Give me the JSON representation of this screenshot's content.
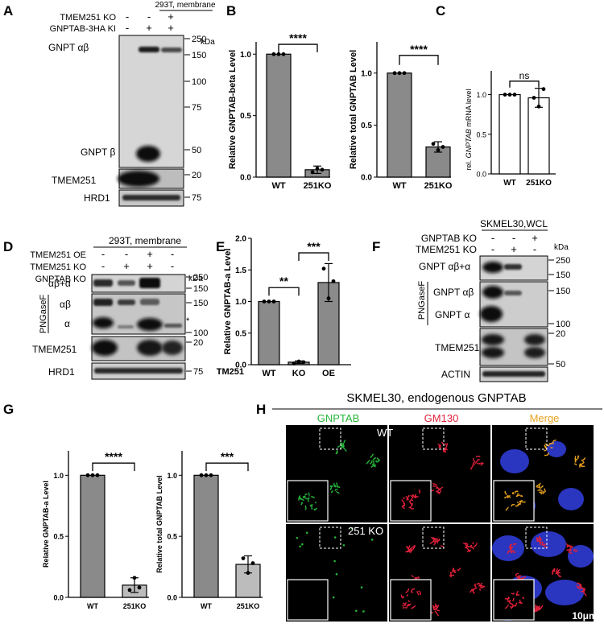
{
  "panels": {
    "A": "A",
    "B": "B",
    "C": "C",
    "D": "D",
    "E": "E",
    "F": "F",
    "G": "G",
    "H": "H"
  },
  "A": {
    "header": "293T, membrane",
    "rows": [
      {
        "label": "TMEM251 KO",
        "marks": [
          "-",
          "-",
          "+"
        ]
      },
      {
        "label": "GNPTAB-3HA KI",
        "marks": [
          "-",
          "+",
          "+"
        ]
      }
    ],
    "kda": "kDa",
    "mw": [
      "250",
      "150",
      "100",
      "75",
      "50",
      "20",
      "75"
    ],
    "band_labels": [
      "GNPT αβ",
      "GNPT β",
      "TMEM251",
      "HRD1"
    ]
  },
  "B": {
    "ylabel1": "Relative GNPTAB-beta Level",
    "ylabel2": "Relative total GNPTAB Level",
    "sig": "****",
    "xticks": [
      "WT",
      "251KO"
    ],
    "yticks": [
      "0.0",
      "0.5",
      "1.0"
    ]
  },
  "C": {
    "ylabel": "rel. GNPTAB mRNA level",
    "ylabel_pre": "rel. ",
    "ylabel_ital": "GNPTAB",
    "ylabel_post": " mRNA level",
    "sig": "ns",
    "xticks": [
      "WT",
      "251KO"
    ],
    "yticks": [
      "0.0",
      "0.5",
      "1.0"
    ]
  },
  "D": {
    "header": "293T, membrane",
    "rows": [
      {
        "label": "TMEM251 OE",
        "marks": [
          "-",
          "-",
          "+",
          "-"
        ]
      },
      {
        "label": "TMEM251 KO",
        "marks": [
          "-",
          "+",
          "+",
          "-"
        ]
      },
      {
        "label": "GNPTAB KO",
        "marks": [
          "-",
          "-",
          "-",
          "+"
        ]
      }
    ],
    "kda": "kDa",
    "png": "PNGaseF",
    "star": "*",
    "mw": [
      "250",
      "150",
      "150",
      "100",
      "20",
      "75"
    ],
    "band_labels": [
      "αβ+α",
      "αβ",
      "α",
      "TMEM251",
      "HRD1"
    ]
  },
  "E": {
    "ylabel": "Relative GNPTAB-a Level",
    "sig1": "**",
    "sig2": "***",
    "xprefix": "TM251",
    "xticks": [
      "WT",
      "KO",
      "OE"
    ],
    "yticks": [
      "0.0",
      "0.5",
      "1.0",
      "1.5",
      "2.0"
    ]
  },
  "F": {
    "header": "SKMEL30,WCL",
    "rows": [
      {
        "label": "GNPTAB KO",
        "marks": [
          "-",
          "-",
          "+"
        ]
      },
      {
        "label": "TMEM251 KO",
        "marks": [
          "-",
          "+",
          "-"
        ]
      }
    ],
    "kda": "kDa",
    "png": "PNGaseF",
    "mw": [
      "250",
      "150",
      "150",
      "100",
      "20",
      "50"
    ],
    "band_labels": [
      "GNPT αβ+α",
      "GNPT αβ",
      "GNPT α",
      "TMEM251",
      "ACTIN"
    ]
  },
  "G": {
    "ylabel1": "Relative GNPTAB-a Level",
    "ylabel2": "Relative total GNPTAB Level",
    "sig1": "****",
    "sig2": "***",
    "xticks": [
      "WT",
      "251KO"
    ],
    "yticks": [
      "0.0",
      "0.5",
      "1.0"
    ]
  },
  "H": {
    "header": "SKMEL30, endogenous GNPTAB",
    "cols": [
      "GNPTAB",
      "GM130",
      "Merge"
    ],
    "wt": "WT",
    "ko": "251 KO",
    "scale": "10μm",
    "colors": {
      "gnptab": "#27b53a",
      "gm130": "#e0203a",
      "merge": "#e8a21e"
    }
  },
  "chart_data": [
    {
      "type": "bar",
      "panel": "B-left",
      "categories": [
        "WT",
        "251KO"
      ],
      "values": [
        1.0,
        0.06
      ],
      "ylim": [
        0,
        1.1
      ],
      "ylabel": "Relative GNPTAB-beta Level",
      "annotation": "****"
    },
    {
      "type": "bar",
      "panel": "B-right",
      "categories": [
        "WT",
        "251KO"
      ],
      "values": [
        1.0,
        0.29
      ],
      "ylim": [
        0,
        1.3
      ],
      "ylabel": "Relative total GNPTAB Level",
      "annotation": "****"
    },
    {
      "type": "bar",
      "panel": "C",
      "categories": [
        "WT",
        "251KO"
      ],
      "values": [
        1.0,
        0.96
      ],
      "ylim": [
        0,
        1.3
      ],
      "ylabel": "rel. GNPTAB mRNA level",
      "annotation": "ns"
    },
    {
      "type": "bar",
      "panel": "E",
      "categories": [
        "WT",
        "KO",
        "OE"
      ],
      "values": [
        1.0,
        0.04,
        1.3
      ],
      "ylim": [
        0,
        2.0
      ],
      "ylabel": "Relative GNPTAB-a Level",
      "annotation": [
        "**",
        "***"
      ]
    },
    {
      "type": "bar",
      "panel": "G-left",
      "categories": [
        "WT",
        "251KO"
      ],
      "values": [
        1.0,
        0.1
      ],
      "ylim": [
        0,
        1.2
      ],
      "ylabel": "Relative GNPTAB-a Level",
      "annotation": "****"
    },
    {
      "type": "bar",
      "panel": "G-right",
      "categories": [
        "WT",
        "251KO"
      ],
      "values": [
        1.0,
        0.27
      ],
      "ylim": [
        0,
        1.2
      ],
      "ylabel": "Relative total GNPTAB Level",
      "annotation": "***"
    }
  ]
}
